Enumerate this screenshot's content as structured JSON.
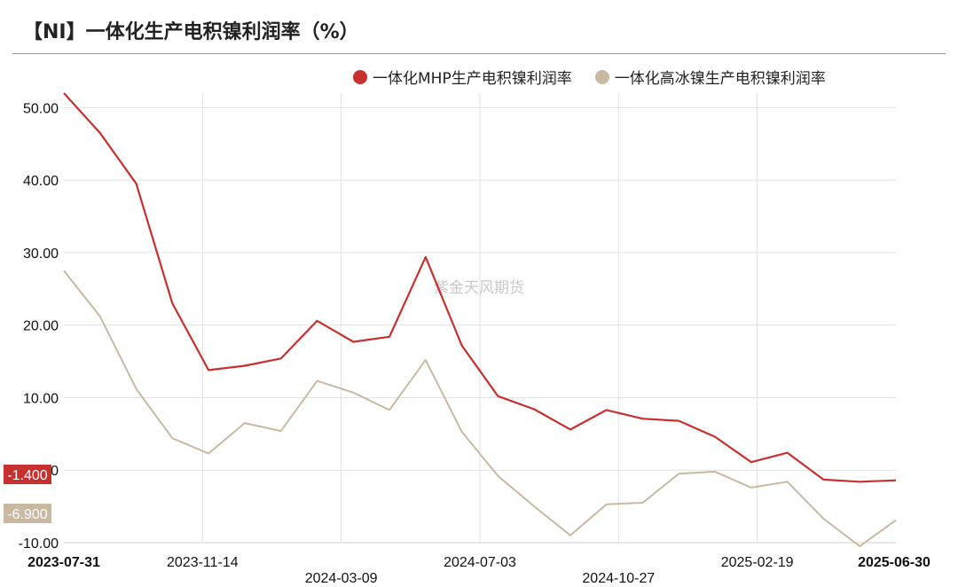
{
  "title": "【NI】一体化生产电积镍利润率（%）",
  "watermark": "紫金天风期货",
  "colors": {
    "mhp": "#c8302f",
    "hpal": "#c9b9a0"
  },
  "chart_data": {
    "type": "line",
    "title": "【NI】一体化生产电积镍利润率（%）",
    "xlabel": "",
    "ylabel": "",
    "ylim": [
      -10,
      52
    ],
    "yticks": [
      "50.00",
      "40.00",
      "30.00",
      "20.00",
      "10.00",
      "0",
      "-10.00"
    ],
    "ytick_values": [
      50,
      40,
      30,
      20,
      10,
      0,
      -10
    ],
    "x_tick_labels": [
      {
        "label": "2023-07-31",
        "bold": true,
        "row": 0
      },
      {
        "label": "2023-11-14",
        "bold": false,
        "row": 0
      },
      {
        "label": "2024-03-09",
        "bold": false,
        "row": 1
      },
      {
        "label": "2024-07-03",
        "bold": false,
        "row": 0
      },
      {
        "label": "2024-10-27",
        "bold": false,
        "row": 1
      },
      {
        "label": "2025-02-19",
        "bold": false,
        "row": 0
      },
      {
        "label": "2025-06-30",
        "bold": true,
        "row": 0
      }
    ],
    "grid": true,
    "legend_position": "top-right",
    "series": [
      {
        "name": "一体化MHP生产电积镍利润率",
        "color": "#c8302f",
        "last_value_label": "-1.400",
        "values": [
          52,
          46.5,
          39.5,
          23,
          13.8,
          14.4,
          15.4,
          20.6,
          17.7,
          18.4,
          29.4,
          17.2,
          10.2,
          8.4,
          5.6,
          8.3,
          7.1,
          6.8,
          4.6,
          1.1,
          2.4,
          -1.3,
          -1.6,
          -1.4
        ]
      },
      {
        "name": "一体化高冰镍生产电积镍利润率",
        "color": "#c9b9a0",
        "last_value_label": "-6.900",
        "values": [
          27.5,
          21.2,
          11.2,
          4.4,
          2.3,
          6.5,
          5.4,
          12.3,
          10.7,
          8.3,
          15.2,
          5.3,
          -0.8,
          -5.0,
          -9.0,
          -4.7,
          -4.5,
          -0.5,
          -0.2,
          -2.4,
          -1.6,
          -6.7,
          -10.5,
          -6.9
        ]
      }
    ]
  }
}
